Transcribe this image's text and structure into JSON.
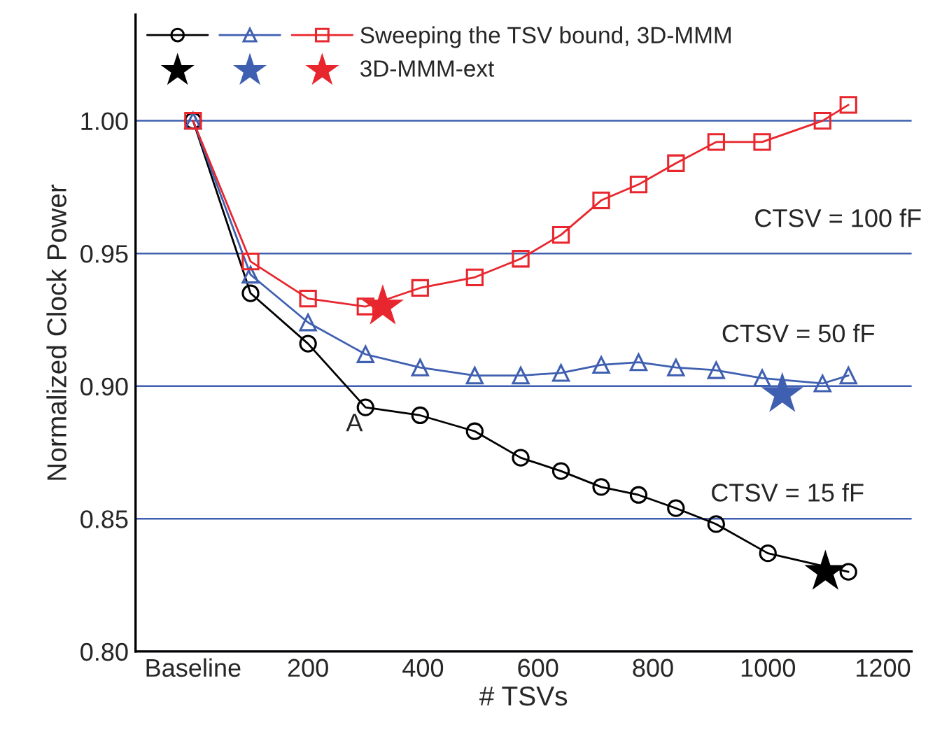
{
  "chart_data": {
    "type": "line",
    "xlabel": "# TSVs",
    "ylabel": "Normalized Clock Power",
    "xlim": [
      -100,
      1250
    ],
    "xticks": [
      {
        "value": 0,
        "label": "Baseline"
      },
      200,
      400,
      600,
      800,
      1000,
      1200
    ],
    "ylim": [
      0.8,
      1.04
    ],
    "yticks": [
      {
        "value": 0.8,
        "label": "0.80"
      },
      0.85,
      {
        "value": 0.9,
        "label": "0.90"
      },
      0.95,
      {
        "value": 1.0,
        "label": "1.00"
      }
    ],
    "grid": "y",
    "legend": "top left",
    "series": [
      {
        "marker": "circle",
        "color": "#000000",
        "x": [
          0,
          100,
          200,
          300,
          395,
          490,
          570,
          640,
          710,
          775,
          840,
          910,
          1000,
          1140
        ],
        "values": [
          1.0,
          0.935,
          0.916,
          0.892,
          0.889,
          0.883,
          0.873,
          0.868,
          0.862,
          0.859,
          0.854,
          0.848,
          0.837,
          0.83
        ]
      },
      {
        "marker": "triangle",
        "color": "#3f5fb0",
        "x": [
          0,
          100,
          200,
          300,
          395,
          490,
          570,
          640,
          710,
          775,
          840,
          910,
          990,
          1095,
          1140
        ],
        "values": [
          1.0,
          0.942,
          0.924,
          0.912,
          0.907,
          0.904,
          0.904,
          0.905,
          0.908,
          0.909,
          0.907,
          0.906,
          0.903,
          0.901,
          0.904
        ]
      },
      {
        "marker": "square",
        "color": "#e8262d",
        "name": "Sweeping the TSV bound, 3D-MMM",
        "x": [
          0,
          100,
          200,
          300,
          395,
          490,
          570,
          640,
          710,
          775,
          840,
          910,
          990,
          1095,
          1140
        ],
        "values": [
          1.0,
          0.947,
          0.933,
          0.93,
          0.937,
          0.941,
          0.948,
          0.957,
          0.97,
          0.976,
          0.984,
          0.992,
          0.992,
          1.0,
          1.006
        ]
      },
      {
        "type": "scatter",
        "marker": "star",
        "color": "#000000",
        "x": [
          1100
        ],
        "values": [
          0.83
        ]
      },
      {
        "type": "scatter",
        "marker": "star",
        "color": "#3f5fb0",
        "x": [
          1025
        ],
        "values": [
          0.897
        ]
      },
      {
        "type": "scatter",
        "marker": "star",
        "color": "#e8262d",
        "name": "3D-MMM-ext",
        "x": [
          330
        ],
        "values": [
          0.93
        ]
      }
    ],
    "annotations": [
      "A",
      "CTSV = 100 fF",
      "CTSV = 50 fF",
      "CTSV = 15 fF"
    ]
  }
}
